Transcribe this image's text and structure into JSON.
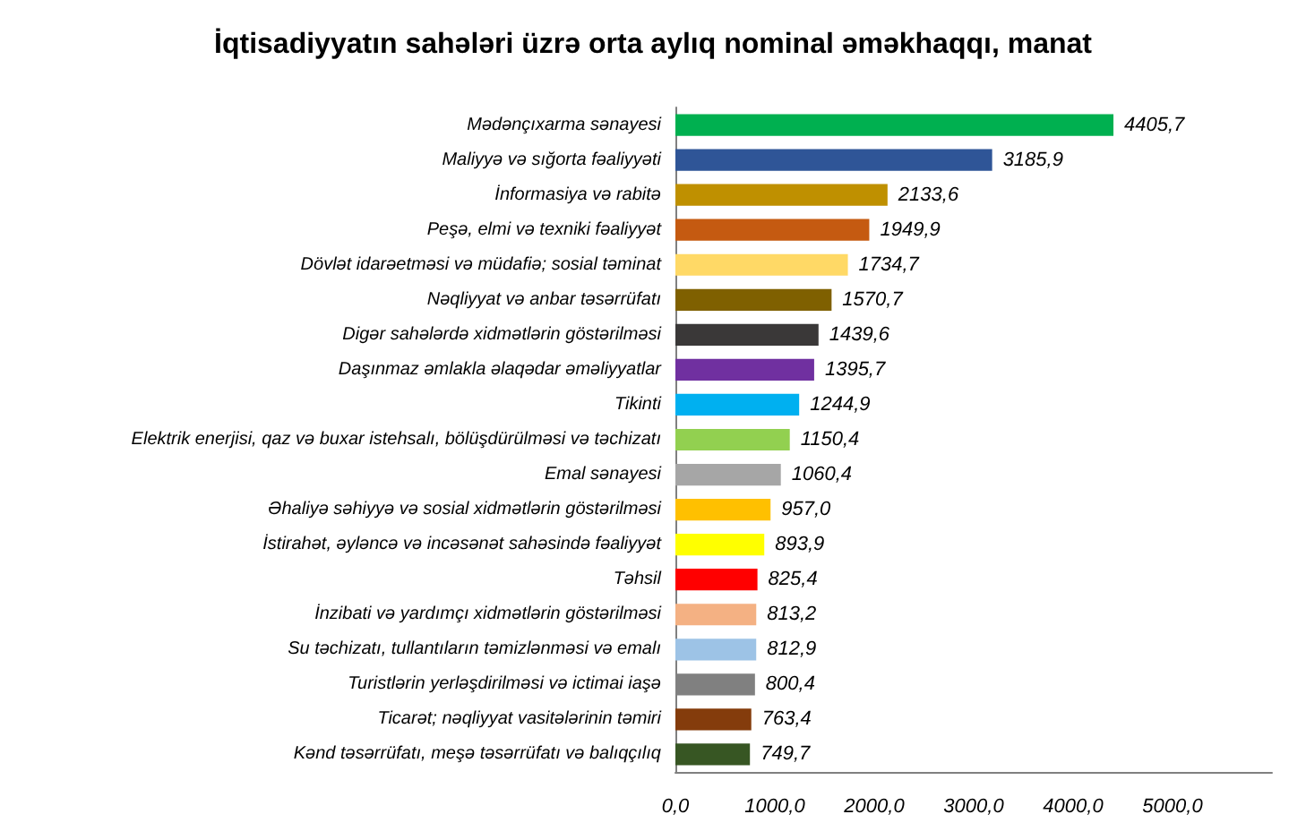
{
  "chart_data": {
    "type": "bar",
    "orientation": "horizontal",
    "title": "İqtisadiyyatın sahələri üzrə orta aylıq nominal əməkhaqqı, manat",
    "categories": [
      "Mədənçıxarma sənayesi",
      "Maliyyə və sığorta fəaliyyəti",
      "İnformasiya və rabitə",
      "Peşə, elmi və texniki fəaliyyət",
      "Dövlət idarəetməsi və müdafiə; sosial təminat",
      "Nəqliyyat və anbar təsərrüfatı",
      "Digər sahələrdə xidmətlərin göstərilməsi",
      "Daşınmaz əmlakla əlaqədar əməliyyatlar",
      "Tikinti",
      "Elektrik enerjisi, qaz və buxar istehsalı, bölüşdürülməsi və təchizatı",
      "Emal sənayesi",
      "Əhaliyə səhiyyə və sosial xidmətlərin göstərilməsi",
      "İstirahət, əyləncə və incəsənət sahəsində fəaliyyət",
      "Təhsil",
      "İnzibati və yardımçı xidmətlərin göstərilməsi",
      "Su təchizatı, tullantıların təmizlənməsi və emalı",
      "Turistlərin yerləşdirilməsi və ictimai iaşə",
      "Ticarət; nəqliyyat vasitələrinin təmiri",
      "Kənd təsərrüfatı, meşə təsərrüfatı və balıqçılıq"
    ],
    "values": [
      4405.7,
      3185.9,
      2133.6,
      1949.9,
      1734.7,
      1570.7,
      1439.6,
      1395.7,
      1244.9,
      1150.4,
      1060.4,
      957.0,
      893.9,
      825.4,
      813.2,
      812.9,
      800.4,
      763.4,
      749.7
    ],
    "value_labels": [
      "4405,7",
      "3185,9",
      "2133,6",
      "1949,9",
      "1734,7",
      "1570,7",
      "1439,6",
      "1395,7",
      "1244,9",
      "1150,4",
      "1060,4",
      "957,0",
      "893,9",
      "825,4",
      "813,2",
      "812,9",
      "800,4",
      "763,4",
      "749,7"
    ],
    "colors": [
      "#00b050",
      "#2f5597",
      "#bf9000",
      "#c55a11",
      "#ffd966",
      "#7f6000",
      "#3a3838",
      "#7030a0",
      "#00b0f0",
      "#92d050",
      "#a6a6a6",
      "#ffc000",
      "#ffff00",
      "#ff0000",
      "#f4b183",
      "#9dc3e6",
      "#808080",
      "#843c0c",
      "#375623"
    ],
    "xlim": [
      0,
      6000
    ],
    "xticks": [
      {
        "value": 0,
        "label": "0,0"
      },
      {
        "value": 1000,
        "label": "1000,0"
      },
      {
        "value": 2000,
        "label": "2000,0"
      },
      {
        "value": 3000,
        "label": "3000,0"
      },
      {
        "value": 4000,
        "label": "4000,0"
      },
      {
        "value": 5000,
        "label": "5000,0"
      }
    ],
    "grid": false
  }
}
